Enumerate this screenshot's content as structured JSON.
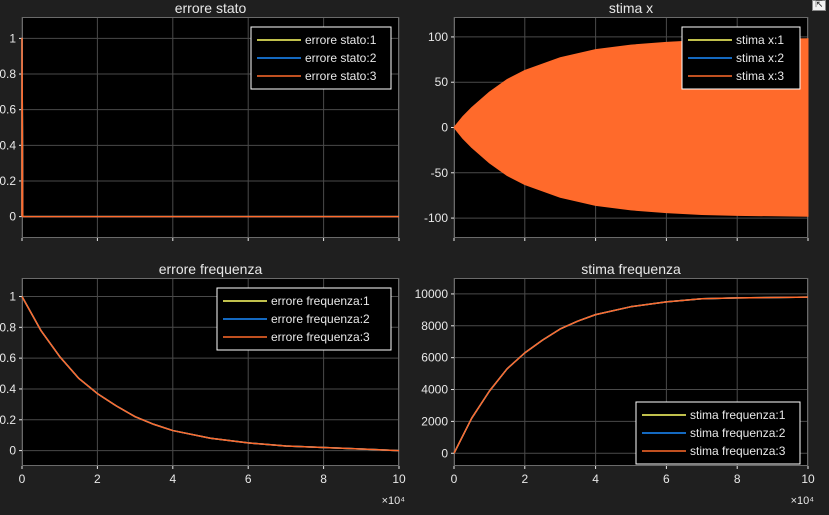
{
  "colors": {
    "figure_bg": "#1f1f1f",
    "axes_bg": "#000000",
    "grid": "#4a4a4a",
    "text": "#e8e8e8",
    "series": [
      "#ffff66",
      "#1a8cff",
      "#ff6a2b"
    ]
  },
  "toolbar": {
    "undock_icon": "undock-icon"
  },
  "chart_data": [
    {
      "type": "line",
      "title": "errore stato",
      "xlim": [
        0,
        10
      ],
      "ylim": [
        -0.12,
        1.12
      ],
      "xticks": [
        0,
        2,
        4,
        6,
        8,
        10
      ],
      "xtick_labels": [
        "",
        "",
        "",
        "",
        "",
        ""
      ],
      "yticks": [
        0,
        0.2,
        0.4,
        0.6,
        0.8,
        1
      ],
      "ytick_labels": [
        "0",
        "0.2",
        "0.4",
        "0.6",
        "0.8",
        "1"
      ],
      "x_multiplier": "",
      "grid": true,
      "legend": {
        "placement": "top-right",
        "entries": [
          "errore stato:1",
          "errore stato:2",
          "errore stato:3"
        ]
      },
      "series": [
        {
          "name": "errore stato:1",
          "x": [
            0,
            0,
            0.02,
            10
          ],
          "y": [
            0,
            1,
            0,
            0
          ]
        },
        {
          "name": "errore stato:2",
          "x": [
            0,
            0,
            0.02,
            10
          ],
          "y": [
            0,
            1,
            0,
            0
          ]
        },
        {
          "name": "errore stato:3",
          "x": [
            0,
            0,
            0.02,
            10
          ],
          "y": [
            0,
            1,
            0,
            0
          ]
        }
      ]
    },
    {
      "type": "area",
      "title": "stima x",
      "xlim": [
        0,
        10
      ],
      "ylim": [
        -122,
        122
      ],
      "xticks": [
        0,
        2,
        4,
        6,
        8,
        10
      ],
      "xtick_labels": [
        "",
        "",
        "",
        "",
        "",
        ""
      ],
      "yticks": [
        -100,
        -50,
        0,
        50,
        100
      ],
      "ytick_labels": [
        "-100",
        "-50",
        "0",
        "50",
        "100"
      ],
      "x_multiplier": "",
      "grid": true,
      "legend": {
        "placement": "top-right",
        "entries": [
          "stima x:1",
          "stima x:2",
          "stima x:3"
        ]
      },
      "envelope": {
        "x": [
          0,
          0.25,
          0.5,
          1,
          1.5,
          2,
          3,
          4,
          5,
          6,
          7,
          8,
          9,
          10
        ],
        "upper": [
          0,
          12,
          22,
          39,
          53,
          63,
          77,
          86,
          91,
          94,
          96,
          97,
          97.5,
          98
        ],
        "lower": [
          0,
          -12,
          -22,
          -39,
          -53,
          -63,
          -77,
          -86,
          -91,
          -94,
          -96,
          -97,
          -97.5,
          -98
        ]
      },
      "series": [
        {
          "name": "stima x:1"
        },
        {
          "name": "stima x:2"
        },
        {
          "name": "stima x:3"
        }
      ]
    },
    {
      "type": "line",
      "title": "errore frequenza",
      "xlim": [
        0,
        10
      ],
      "ylim": [
        -0.1,
        1.12
      ],
      "xticks": [
        0,
        2,
        4,
        6,
        8,
        10
      ],
      "xtick_labels": [
        "0",
        "2",
        "4",
        "6",
        "8",
        "10"
      ],
      "yticks": [
        0,
        0.2,
        0.4,
        0.6,
        0.8,
        1
      ],
      "ytick_labels": [
        "0",
        "0.2",
        "0.4",
        "0.6",
        "0.8",
        "1"
      ],
      "x_multiplier": "×10⁴",
      "grid": true,
      "legend": {
        "placement": "top-right",
        "entries": [
          "errore frequenza:1",
          "errore frequenza:2",
          "errore frequenza:3"
        ]
      },
      "series": [
        {
          "name": "errore frequenza:1",
          "x": [
            0,
            0.5,
            1,
            1.5,
            2,
            2.5,
            3,
            3.5,
            4,
            5,
            6,
            7,
            8,
            9,
            10
          ],
          "y": [
            1,
            0.78,
            0.61,
            0.47,
            0.37,
            0.29,
            0.22,
            0.17,
            0.13,
            0.08,
            0.05,
            0.03,
            0.02,
            0.01,
            0.0
          ]
        },
        {
          "name": "errore frequenza:2",
          "x": [
            0,
            0.5,
            1,
            1.5,
            2,
            2.5,
            3,
            3.5,
            4,
            5,
            6,
            7,
            8,
            9,
            10
          ],
          "y": [
            1,
            0.78,
            0.61,
            0.47,
            0.37,
            0.29,
            0.22,
            0.17,
            0.13,
            0.08,
            0.05,
            0.03,
            0.02,
            0.01,
            0.0
          ]
        },
        {
          "name": "errore frequenza:3",
          "x": [
            0,
            0.5,
            1,
            1.5,
            2,
            2.5,
            3,
            3.5,
            4,
            5,
            6,
            7,
            8,
            9,
            10
          ],
          "y": [
            1,
            0.78,
            0.61,
            0.47,
            0.37,
            0.29,
            0.22,
            0.17,
            0.13,
            0.08,
            0.05,
            0.03,
            0.02,
            0.01,
            0.0
          ]
        }
      ]
    },
    {
      "type": "line",
      "title": "stima frequenza",
      "xlim": [
        0,
        10
      ],
      "ylim": [
        -800,
        11000
      ],
      "xticks": [
        0,
        2,
        4,
        6,
        8,
        10
      ],
      "xtick_labels": [
        "0",
        "2",
        "4",
        "6",
        "8",
        "10"
      ],
      "yticks": [
        0,
        2000,
        4000,
        6000,
        8000,
        10000
      ],
      "ytick_labels": [
        "0",
        "2000",
        "4000",
        "6000",
        "8000",
        "10000"
      ],
      "x_multiplier": "×10⁴",
      "grid": true,
      "legend": {
        "placement": "bottom-right",
        "entries": [
          "stima frequenza:1",
          "stima frequenza:2",
          "stima frequenza:3"
        ]
      },
      "series": [
        {
          "name": "stima frequenza:1",
          "x": [
            0,
            0.5,
            1,
            1.5,
            2,
            2.5,
            3,
            3.5,
            4,
            5,
            6,
            7,
            8,
            9,
            10
          ],
          "y": [
            0,
            2200,
            3900,
            5300,
            6300,
            7100,
            7800,
            8300,
            8700,
            9200,
            9500,
            9700,
            9750,
            9780,
            9800
          ]
        },
        {
          "name": "stima frequenza:2",
          "x": [
            0,
            0.5,
            1,
            1.5,
            2,
            2.5,
            3,
            3.5,
            4,
            5,
            6,
            7,
            8,
            9,
            10
          ],
          "y": [
            0,
            2200,
            3900,
            5300,
            6300,
            7100,
            7800,
            8300,
            8700,
            9200,
            9500,
            9700,
            9750,
            9780,
            9800
          ]
        },
        {
          "name": "stima frequenza:3",
          "x": [
            0,
            0.5,
            1,
            1.5,
            2,
            2.5,
            3,
            3.5,
            4,
            5,
            6,
            7,
            8,
            9,
            10
          ],
          "y": [
            0,
            2200,
            3900,
            5300,
            6300,
            7100,
            7800,
            8300,
            8700,
            9200,
            9500,
            9700,
            9750,
            9780,
            9800
          ]
        }
      ]
    }
  ]
}
